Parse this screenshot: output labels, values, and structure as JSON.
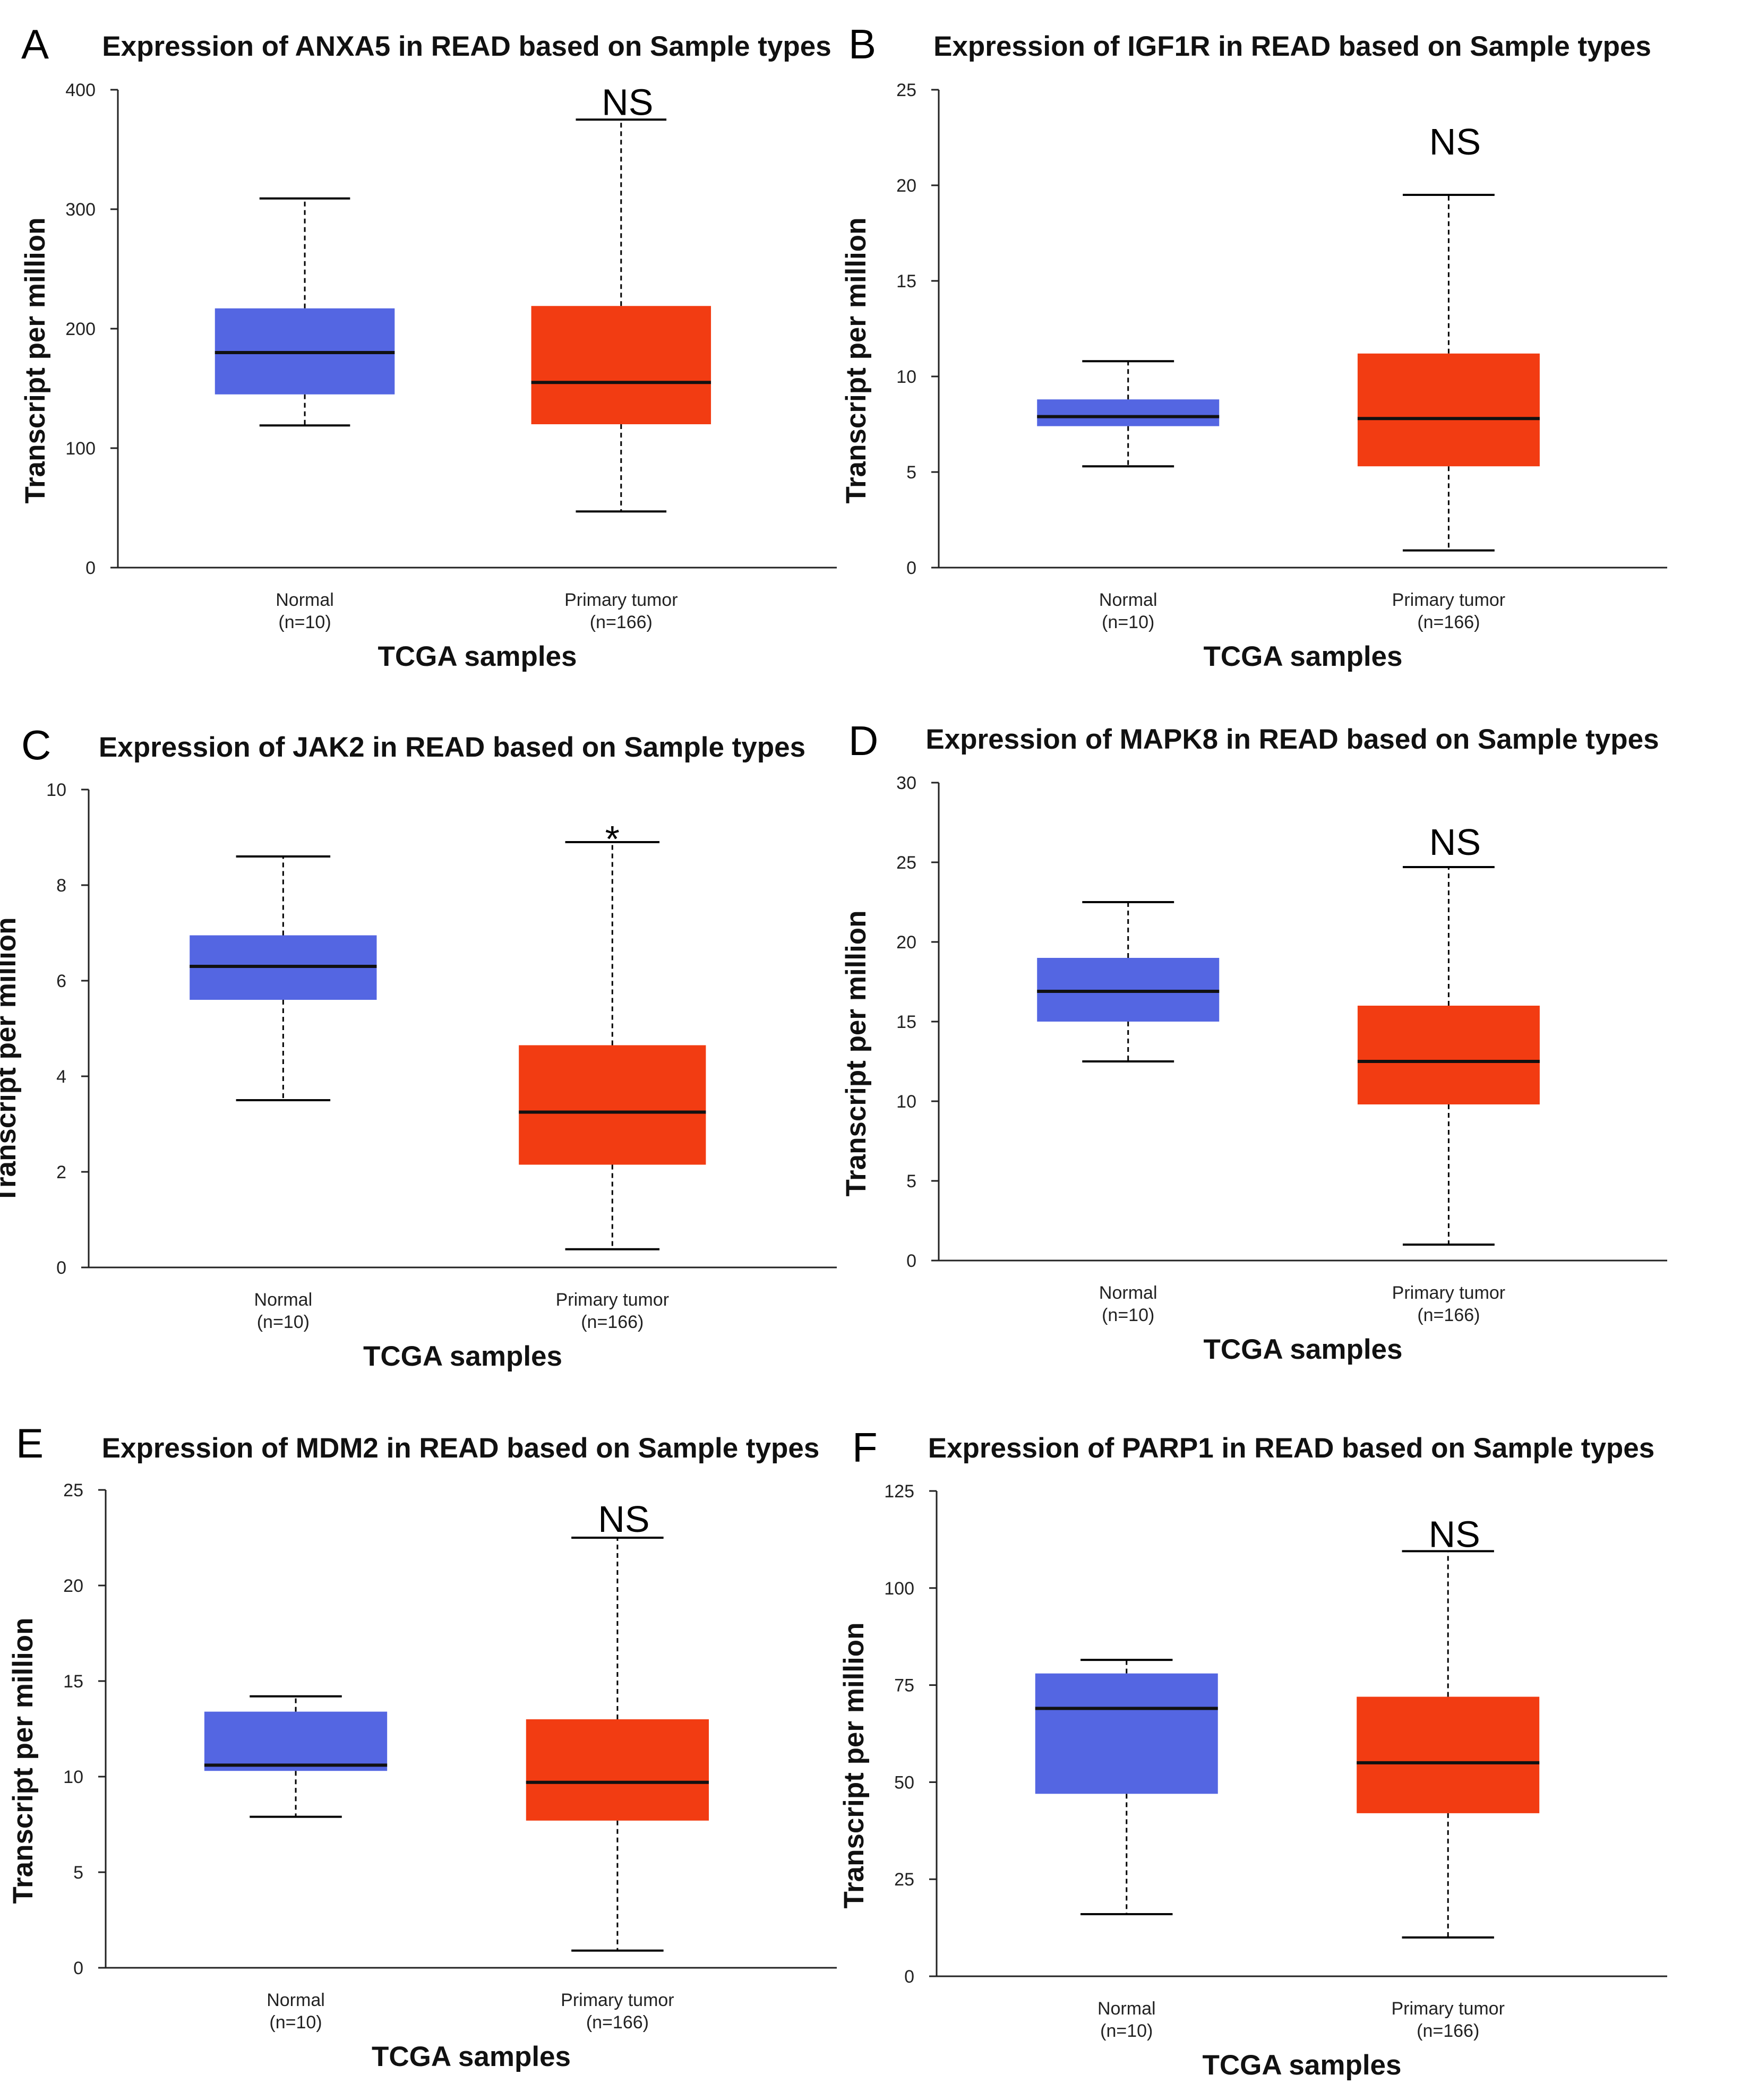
{
  "colors": {
    "normal": "#5466E2",
    "tumor": "#F23C12",
    "line": "#000000"
  },
  "chart_data": [
    {
      "type": "box",
      "letter": "A",
      "title": "Expression of ANXA5 in READ based on Sample types",
      "xlabel": "TCGA samples",
      "ylabel": "Transcript per million",
      "ylim": [
        0,
        400
      ],
      "yticks": [
        0,
        100,
        200,
        300,
        400
      ],
      "categories": [
        {
          "name": "Normal",
          "n": "(n=10)",
          "min": 119,
          "q1": 145,
          "median": 180,
          "q3": 217,
          "max": 309
        },
        {
          "name": "Primary tumor",
          "n": "(n=166)",
          "min": 47,
          "q1": 120,
          "median": 155,
          "q3": 219,
          "max": 375
        }
      ],
      "significance": "NS",
      "sig_bar": true,
      "sig_value": 390
    },
    {
      "type": "box",
      "letter": "B",
      "title": "Expression of IGF1R in READ based on Sample types",
      "xlabel": "TCGA samples",
      "ylabel": "Transcript per million",
      "ylim": [
        0,
        25
      ],
      "yticks": [
        0,
        5,
        10,
        15,
        20,
        25
      ],
      "categories": [
        {
          "name": "Normal",
          "n": "(n=10)",
          "min": 5.3,
          "q1": 7.4,
          "median": 7.9,
          "q3": 8.8,
          "max": 10.8
        },
        {
          "name": "Primary tumor",
          "n": "(n=166)",
          "min": 0.9,
          "q1": 5.3,
          "median": 7.8,
          "q3": 11.2,
          "max": 19.5
        }
      ],
      "significance": "NS",
      "sig_bar": false,
      "sig_value": 22.3
    },
    {
      "type": "box",
      "letter": "C",
      "title": "Expression of JAK2 in READ based on Sample types",
      "xlabel": "TCGA samples",
      "ylabel": "Transcript per million",
      "ylim": [
        0,
        10
      ],
      "yticks": [
        0,
        2,
        4,
        6,
        8,
        10
      ],
      "categories": [
        {
          "name": "Normal",
          "n": "(n=10)",
          "min": 3.5,
          "q1": 5.6,
          "median": 6.3,
          "q3": 6.95,
          "max": 8.6
        },
        {
          "name": "Primary tumor",
          "n": "(n=166)",
          "min": 0.38,
          "q1": 2.15,
          "median": 3.25,
          "q3": 4.65,
          "max": 8.9
        }
      ],
      "significance": "*",
      "sig_bar": false,
      "sig_value": 9.2
    },
    {
      "type": "box",
      "letter": "D",
      "title": "Expression of MAPK8 in READ based on Sample types",
      "xlabel": "TCGA samples",
      "ylabel": "Transcript per million",
      "ylim": [
        0,
        30
      ],
      "yticks": [
        0,
        5,
        10,
        15,
        20,
        25,
        30
      ],
      "categories": [
        {
          "name": "Normal",
          "n": "(n=10)",
          "min": 12.5,
          "q1": 15,
          "median": 16.9,
          "q3": 19,
          "max": 22.5
        },
        {
          "name": "Primary tumor",
          "n": "(n=166)",
          "min": 1,
          "q1": 9.8,
          "median": 12.5,
          "q3": 16,
          "max": 24.7
        }
      ],
      "significance": "NS",
      "sig_bar": false,
      "sig_value": 26.3
    },
    {
      "type": "box",
      "letter": "E",
      "title": "Expression of MDM2 in READ based on Sample types",
      "xlabel": "TCGA samples",
      "ylabel": "Transcript per million",
      "ylim": [
        0,
        25
      ],
      "yticks": [
        0,
        5,
        10,
        15,
        20,
        25
      ],
      "categories": [
        {
          "name": "Normal",
          "n": "(n=10)",
          "min": 7.9,
          "q1": 10.3,
          "median": 10.6,
          "q3": 13.4,
          "max": 14.2
        },
        {
          "name": "Primary tumor",
          "n": "(n=166)",
          "min": 0.9,
          "q1": 7.7,
          "median": 9.7,
          "q3": 13,
          "max": 22.5
        }
      ],
      "significance": "NS",
      "sig_bar": true,
      "sig_value": 23.5
    },
    {
      "type": "box",
      "letter": "F",
      "title": "Expression of PARP1 in READ based on Sample types",
      "xlabel": "TCGA samples",
      "ylabel": "Transcript per million",
      "ylim": [
        0,
        125
      ],
      "yticks": [
        0,
        25,
        50,
        75,
        100,
        125
      ],
      "categories": [
        {
          "name": "Normal",
          "n": "(n=10)",
          "min": 16,
          "q1": 47,
          "median": 69,
          "q3": 78,
          "max": 81.5
        },
        {
          "name": "Primary tumor",
          "n": "(n=166)",
          "min": 10,
          "q1": 42,
          "median": 55,
          "q3": 72,
          "max": 109.5
        }
      ],
      "significance": "NS",
      "sig_bar": true,
      "sig_value": 114
    }
  ]
}
